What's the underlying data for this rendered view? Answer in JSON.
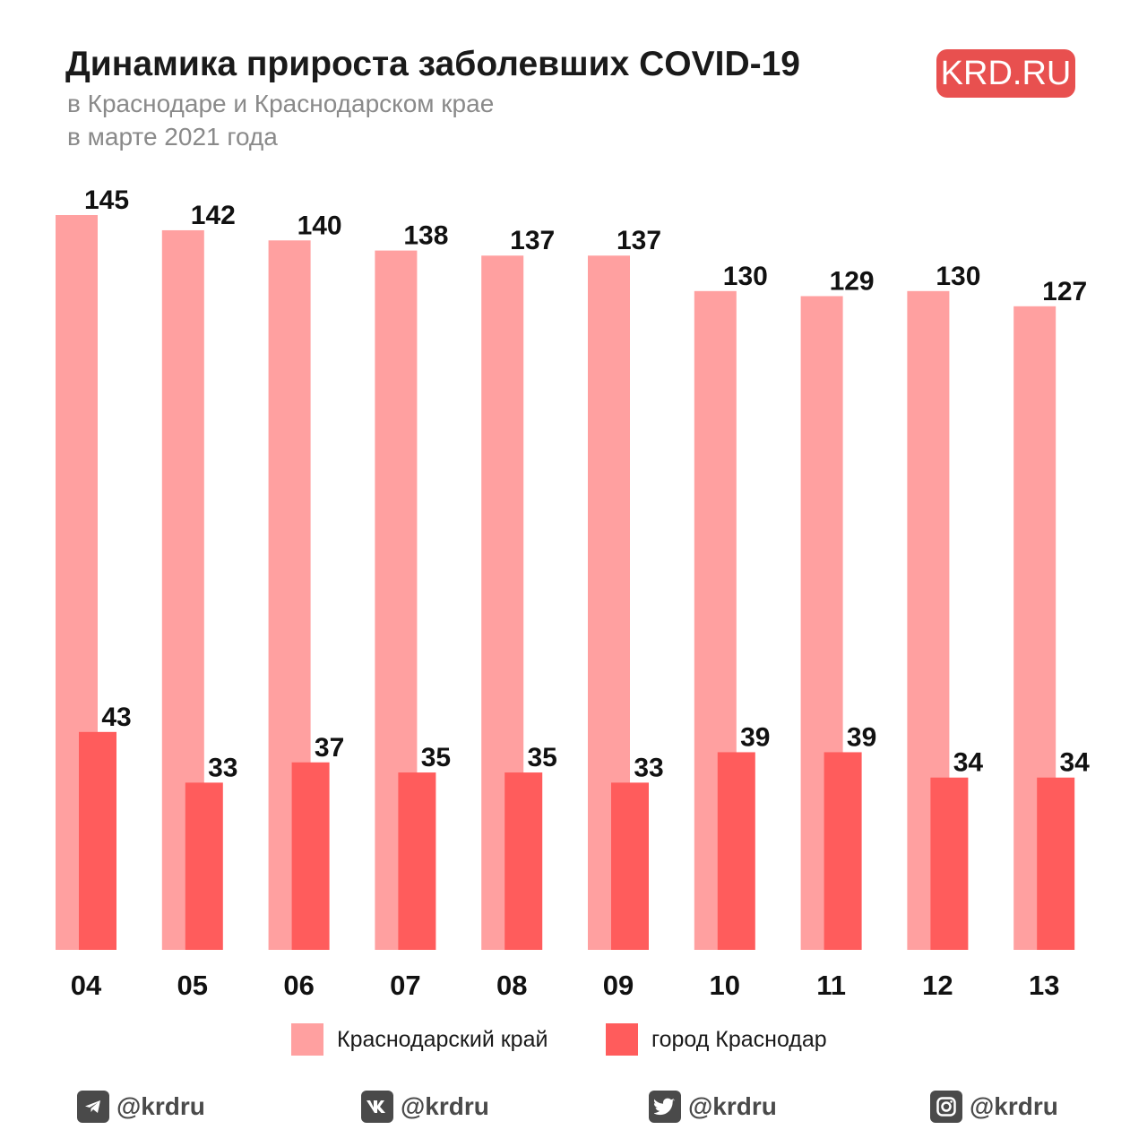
{
  "title": "Динамика прироста заболевших COVID-19",
  "subtitle_line1": "в Краснодаре и Краснодарском крае",
  "subtitle_line2": "в марте 2021 года",
  "logo": "KRD.RU",
  "colors": {
    "region": "#ffa0a0",
    "city": "#ff5c5c",
    "logo_bg": "#e8504f"
  },
  "chart_data": {
    "type": "bar",
    "categories": [
      "04",
      "05",
      "06",
      "07",
      "08",
      "09",
      "10",
      "11",
      "12",
      "13"
    ],
    "series": [
      {
        "name": "Краснодарский край",
        "values": [
          145,
          142,
          140,
          138,
          137,
          137,
          130,
          129,
          130,
          127
        ]
      },
      {
        "name": "город Краснодар",
        "values": [
          43,
          33,
          37,
          35,
          35,
          33,
          39,
          39,
          34,
          34
        ]
      }
    ],
    "ylim": [
      0,
      145
    ],
    "grid": false,
    "legend_position": "bottom"
  },
  "legend": [
    {
      "label": "Краснодарский край"
    },
    {
      "label": "город Краснодар"
    }
  ],
  "social": [
    {
      "icon": "telegram-icon",
      "handle": "@krdru"
    },
    {
      "icon": "vk-icon",
      "handle": "@krdru"
    },
    {
      "icon": "twitter-icon",
      "handle": "@krdru"
    },
    {
      "icon": "instagram-icon",
      "handle": "@krdru"
    }
  ]
}
